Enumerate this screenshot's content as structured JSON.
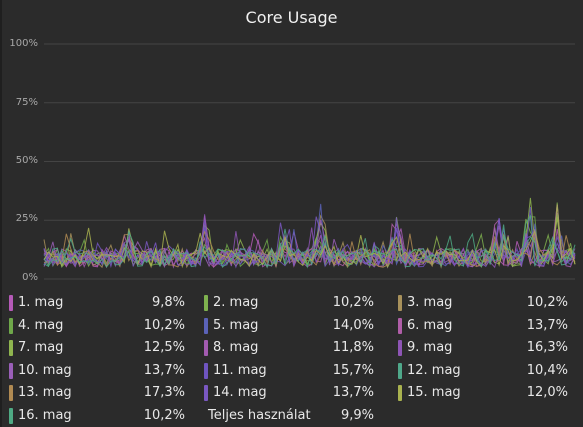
{
  "panel": {
    "title": "Core Usage"
  },
  "chart_data": {
    "type": "line",
    "title": "Core Usage",
    "ylim": [
      0,
      100
    ],
    "yticks": [
      "0%",
      "25%",
      "50%",
      "75%",
      "100%"
    ],
    "grid": true,
    "legend_placement": "bottom",
    "series": [
      {
        "name": "1. mag",
        "color": "#b55ab8",
        "value": "9,8%"
      },
      {
        "name": "2. mag",
        "color": "#7fb24f",
        "value": "10,2%"
      },
      {
        "name": "3. mag",
        "color": "#a8915b",
        "value": "10,2%"
      },
      {
        "name": "4. mag",
        "color": "#6fa84a",
        "value": "10,2%"
      },
      {
        "name": "5. mag",
        "color": "#5b63b8",
        "value": "14,0%"
      },
      {
        "name": "6. mag",
        "color": "#b05ea8",
        "value": "13,7%"
      },
      {
        "name": "7. mag",
        "color": "#8fb54f",
        "value": "12,5%"
      },
      {
        "name": "8. mag",
        "color": "#a35bb0",
        "value": "11,8%"
      },
      {
        "name": "9. mag",
        "color": "#8e55b5",
        "value": "16,3%"
      },
      {
        "name": "10. mag",
        "color": "#9a5fb8",
        "value": "13,7%"
      },
      {
        "name": "11. mag",
        "color": "#6f55c0",
        "value": "15,7%"
      },
      {
        "name": "12. mag",
        "color": "#4fa88a",
        "value": "10,4%"
      },
      {
        "name": "13. mag",
        "color": "#b08a52",
        "value": "17,3%"
      },
      {
        "name": "14. mag",
        "color": "#7a58c2",
        "value": "13,7%"
      },
      {
        "name": "15. mag",
        "color": "#a9b24f",
        "value": "12,0%"
      },
      {
        "name": "16. mag",
        "color": "#4faa84",
        "value": "10,2%"
      }
    ],
    "total": {
      "name": "Teljes használat",
      "value": "9,9%"
    }
  }
}
